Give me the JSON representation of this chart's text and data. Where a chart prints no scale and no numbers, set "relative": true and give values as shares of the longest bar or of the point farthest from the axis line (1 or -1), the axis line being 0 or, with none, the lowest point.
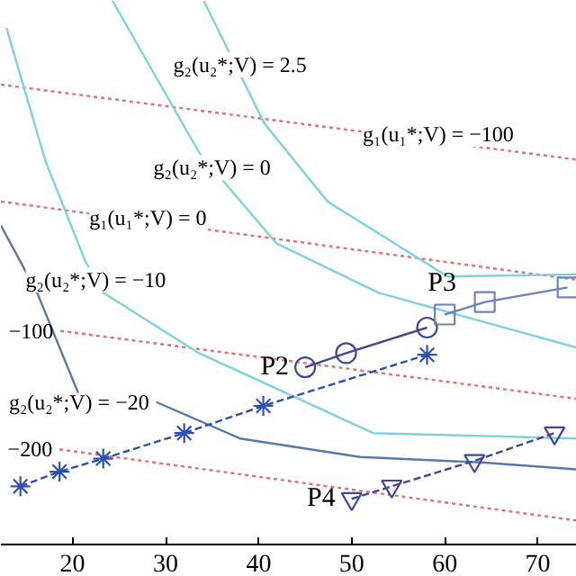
{
  "chart_data": {
    "type": "line",
    "relative": true,
    "xlim": [
      12.3,
      74.2
    ],
    "xticks": [
      20,
      30,
      40,
      50,
      60,
      70
    ],
    "series": [
      {
        "color": "#e07070",
        "line_style": "dotted",
        "marker": "none",
        "x": [
          12.3,
          74.2
        ],
        "values": [
          0.846,
          0.708
        ]
      },
      {
        "color": "#e07070",
        "line_style": "dotted",
        "marker": "none",
        "x": [
          12.3,
          74.2
        ],
        "values": [
          0.631,
          0.487
        ]
      },
      {
        "color": "#e07070",
        "line_style": "dotted",
        "marker": "none",
        "x": [
          18.7,
          74.2
        ],
        "values": [
          0.393,
          0.268
        ]
      },
      {
        "color": "#e07070",
        "line_style": "dotted",
        "marker": "none",
        "x": [
          18.6,
          74.2
        ],
        "values": [
          0.175,
          0.044
        ]
      },
      {
        "color": "#80d0dc",
        "line_style": "solid",
        "marker": "none",
        "x": [
          12.9,
          17.1,
          21.4,
          23.3,
          33.6,
          52.3,
          74.2
        ],
        "values": [
          0.95,
          0.705,
          0.52,
          0.463,
          0.352,
          0.205,
          0.195
        ]
      },
      {
        "color": "#5878a8",
        "line_style": "solid",
        "marker": "none",
        "x": [
          12.3,
          16.2,
          20.6
        ],
        "values": [
          0.587,
          0.463,
          0.279
        ]
      },
      {
        "color": "#80d0dc",
        "line_style": "solid",
        "marker": "none",
        "x": [
          24.3,
          33.6,
          41.9,
          52.9,
          74.2
        ],
        "values": [
          1.0,
          0.721,
          0.554,
          0.463,
          0.362
        ]
      },
      {
        "color": "#80d0dc",
        "line_style": "solid",
        "marker": "none",
        "x": [
          34.1,
          40.6,
          47.4,
          60.3,
          74.2
        ],
        "values": [
          1.0,
          0.775,
          0.631,
          0.493,
          0.497
        ]
      },
      {
        "color": "#5878a8",
        "line_style": "solid",
        "marker": "none",
        "x": [
          29.0,
          38.0,
          50.9,
          63.9,
          74.2
        ],
        "values": [
          0.262,
          0.195,
          0.161,
          0.151,
          0.138
        ]
      },
      {
        "color": "#3050b0",
        "line_style": "dashed",
        "marker": "cross",
        "x": [
          14.4,
          18.6,
          23.3,
          32.0,
          40.5,
          58.1
        ],
        "values": [
          0.107,
          0.134,
          0.158,
          0.205,
          0.255,
          0.349
        ]
      },
      {
        "color": "#404890",
        "line_style": "solid",
        "marker": "circle",
        "x": [
          45.0,
          49.4,
          58.1
        ],
        "values": [
          0.326,
          0.352,
          0.399
        ]
      },
      {
        "color": "#7080b8",
        "line_style": "solid",
        "marker": "square",
        "x": [
          60.0,
          64.3,
          73.2
        ],
        "values": [
          0.423,
          0.446,
          0.473
        ]
      },
      {
        "color": "#404890",
        "line_style": "dashed",
        "marker": "triangle",
        "x": [
          50.0,
          54.3,
          63.2,
          71.8
        ],
        "values": [
          0.084,
          0.107,
          0.154,
          0.205
        ]
      }
    ],
    "annotations": [
      {
        "text": "P2",
        "x": 45.0,
        "y": 0.326
      },
      {
        "text": "P3",
        "x": 59.7,
        "y": 0.48
      },
      {
        "text": "P4",
        "x": 50.0,
        "y": 0.084
      },
      {
        "text": "g₂(u₂*;V) = 2.5",
        "x": 38.0,
        "y": 0.883
      },
      {
        "text": "g₁(u₁*;V) = −100",
        "x": 59.3,
        "y": 0.755
      },
      {
        "text": "g₂(u₂*;V) = 0",
        "x": 35.0,
        "y": 0.693
      },
      {
        "text": "g₁(u₁*;V) = 0",
        "x": 28.1,
        "y": 0.601
      },
      {
        "text": "g₂(u₂*;V) = −10",
        "x": 22.5,
        "y": 0.487
      },
      {
        "text": "−100",
        "x": 18.7,
        "y": 0.393
      },
      {
        "text": "g₂(u₂*;V) = −20",
        "x": 29.0,
        "y": 0.262
      },
      {
        "text": "−200",
        "x": 18.6,
        "y": 0.175
      }
    ]
  }
}
